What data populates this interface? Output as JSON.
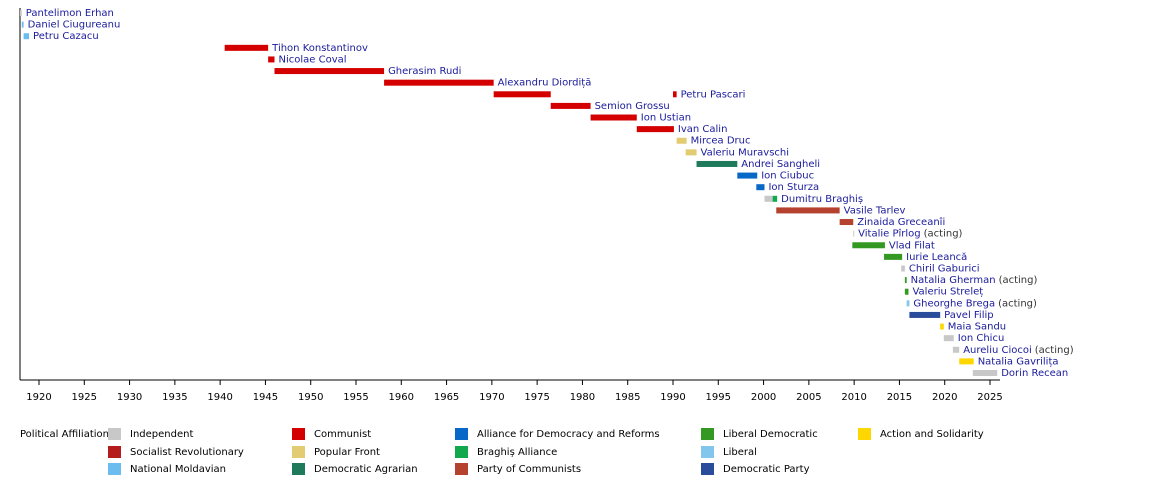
{
  "chart_data": {
    "type": "timeline",
    "xlim": [
      1918,
      2026
    ],
    "xticks": [
      1920,
      1925,
      1930,
      1935,
      1940,
      1945,
      1950,
      1955,
      1960,
      1965,
      1970,
      1975,
      1980,
      1985,
      1990,
      1995,
      2000,
      2005,
      2010,
      2015,
      2020,
      2025
    ],
    "legend_title": "Political Affiliation:",
    "parties": [
      {
        "name": "Independent",
        "color": "#c8c8c8"
      },
      {
        "name": "Socialist Revolutionary",
        "color": "#b51d1d"
      },
      {
        "name": "National Moldavian",
        "color": "#6dbcf0"
      },
      {
        "name": "Communist",
        "color": "#d40000"
      },
      {
        "name": "Popular Front",
        "color": "#e2cb70"
      },
      {
        "name": "Democratic Agrarian",
        "color": "#1e7a5a"
      },
      {
        "name": "Alliance for Democracy and Reforms",
        "color": "#0868c8"
      },
      {
        "name": "Braghiș Alliance",
        "color": "#12a84e"
      },
      {
        "name": "Party of Communists",
        "color": "#b5412f"
      },
      {
        "name": "Liberal Democratic",
        "color": "#339922"
      },
      {
        "name": "Liberal",
        "color": "#82c6ee"
      },
      {
        "name": "Democratic Party",
        "color": "#2a4d9b"
      },
      {
        "name": "Action and Solidarity",
        "color": "#ffd700"
      }
    ],
    "rows": [
      {
        "name": "Pantelimon Erhan",
        "segments": [
          {
            "start": 1917.9,
            "end": 1918.1,
            "party": "Independent"
          }
        ]
      },
      {
        "name": "Daniel Ciugureanu",
        "segments": [
          {
            "start": 1918.1,
            "end": 1918.3,
            "party": "National Moldavian"
          }
        ]
      },
      {
        "name": "Petru Cazacu",
        "segments": [
          {
            "start": 1918.3,
            "end": 1918.9,
            "party": "National Moldavian"
          }
        ]
      },
      {
        "name": "Tihon Konstantinov",
        "segments": [
          {
            "start": 1940.5,
            "end": 1945.3,
            "party": "Communist"
          }
        ]
      },
      {
        "name": "Nicolae Coval",
        "segments": [
          {
            "start": 1945.3,
            "end": 1946.0,
            "party": "Communist"
          }
        ]
      },
      {
        "name": "Gherasim Rudi",
        "segments": [
          {
            "start": 1946.0,
            "end": 1958.1,
            "party": "Communist"
          }
        ]
      },
      {
        "name": "Alexandru Diordiță",
        "segments": [
          {
            "start": 1958.1,
            "end": 1970.2,
            "party": "Communist"
          }
        ]
      },
      {
        "name": "Petru Pascari",
        "segments": [
          {
            "start": 1970.2,
            "end": 1976.5,
            "party": "Communist"
          },
          {
            "start": 1990.0,
            "end": 1990.4,
            "party": "Communist"
          }
        ]
      },
      {
        "name": "Semion Grossu",
        "segments": [
          {
            "start": 1976.5,
            "end": 1980.9,
            "party": "Communist"
          }
        ]
      },
      {
        "name": "Ion Ustian",
        "segments": [
          {
            "start": 1980.9,
            "end": 1986.0,
            "party": "Communist"
          }
        ]
      },
      {
        "name": "Ivan Calin",
        "segments": [
          {
            "start": 1986.0,
            "end": 1990.1,
            "party": "Communist"
          }
        ]
      },
      {
        "name": "Mircea Druc",
        "segments": [
          {
            "start": 1990.4,
            "end": 1991.5,
            "party": "Popular Front"
          }
        ]
      },
      {
        "name": "Valeriu Muravschi",
        "segments": [
          {
            "start": 1991.4,
            "end": 1992.6,
            "party": "Popular Front"
          }
        ]
      },
      {
        "name": "Andrei Sangheli",
        "segments": [
          {
            "start": 1992.6,
            "end": 1997.1,
            "party": "Democratic Agrarian"
          }
        ]
      },
      {
        "name": "Ion Ciubuc",
        "segments": [
          {
            "start": 1997.1,
            "end": 1999.3,
            "party": "Alliance for Democracy and Reforms"
          }
        ]
      },
      {
        "name": "Ion Sturza",
        "segments": [
          {
            "start": 1999.2,
            "end": 2000.1,
            "party": "Alliance for Democracy and Reforms"
          }
        ]
      },
      {
        "name": "Dumitru Braghiș",
        "segments": [
          {
            "start": 2000.1,
            "end": 2001.0,
            "party": "Independent"
          },
          {
            "start": 2001.0,
            "end": 2001.5,
            "party": "Braghiș Alliance"
          }
        ]
      },
      {
        "name": "Vasile Tarlev",
        "segments": [
          {
            "start": 2001.4,
            "end": 2008.4,
            "party": "Party of Communists"
          }
        ]
      },
      {
        "name": "Zinaida Greceanîi",
        "segments": [
          {
            "start": 2008.4,
            "end": 2009.9,
            "party": "Party of Communists"
          }
        ]
      },
      {
        "name": "Vitalie Pîrlog",
        "note": "(acting)",
        "segments": [
          {
            "start": 2009.9,
            "end": 2010.0,
            "party": "Independent"
          }
        ]
      },
      {
        "name": "Vlad Filat",
        "segments": [
          {
            "start": 2009.8,
            "end": 2013.4,
            "party": "Liberal Democratic"
          }
        ]
      },
      {
        "name": "Iurie Leancă",
        "segments": [
          {
            "start": 2013.3,
            "end": 2015.3,
            "party": "Liberal Democratic"
          }
        ]
      },
      {
        "name": "Chiril Gaburici",
        "segments": [
          {
            "start": 2015.2,
            "end": 2015.6,
            "party": "Independent"
          }
        ]
      },
      {
        "name": "Natalia Gherman",
        "note": "(acting)",
        "segments": [
          {
            "start": 2015.6,
            "end": 2015.8,
            "party": "Liberal Democratic"
          }
        ]
      },
      {
        "name": "Valeriu Streleț",
        "segments": [
          {
            "start": 2015.6,
            "end": 2016.0,
            "party": "Liberal Democratic"
          }
        ]
      },
      {
        "name": "Gheorghe Brega",
        "note": "(acting)",
        "segments": [
          {
            "start": 2015.8,
            "end": 2016.1,
            "party": "Liberal"
          }
        ]
      },
      {
        "name": "Pavel Filip",
        "segments": [
          {
            "start": 2016.1,
            "end": 2019.5,
            "party": "Democratic Party"
          }
        ]
      },
      {
        "name": "Maia Sandu",
        "segments": [
          {
            "start": 2019.5,
            "end": 2019.9,
            "party": "Action and Solidarity"
          }
        ]
      },
      {
        "name": "Ion Chicu",
        "segments": [
          {
            "start": 2019.9,
            "end": 2021.0,
            "party": "Independent"
          }
        ]
      },
      {
        "name": "Aureliu Ciocoi",
        "note": "(acting)",
        "segments": [
          {
            "start": 2020.9,
            "end": 2021.6,
            "party": "Independent"
          }
        ]
      },
      {
        "name": "Natalia Gavrilița",
        "segments": [
          {
            "start": 2021.6,
            "end": 2023.2,
            "party": "Action and Solidarity"
          }
        ]
      },
      {
        "name": "Dorin Recean",
        "segments": [
          {
            "start": 2023.1,
            "end": 2025.8,
            "party": "Independent"
          }
        ]
      }
    ]
  }
}
